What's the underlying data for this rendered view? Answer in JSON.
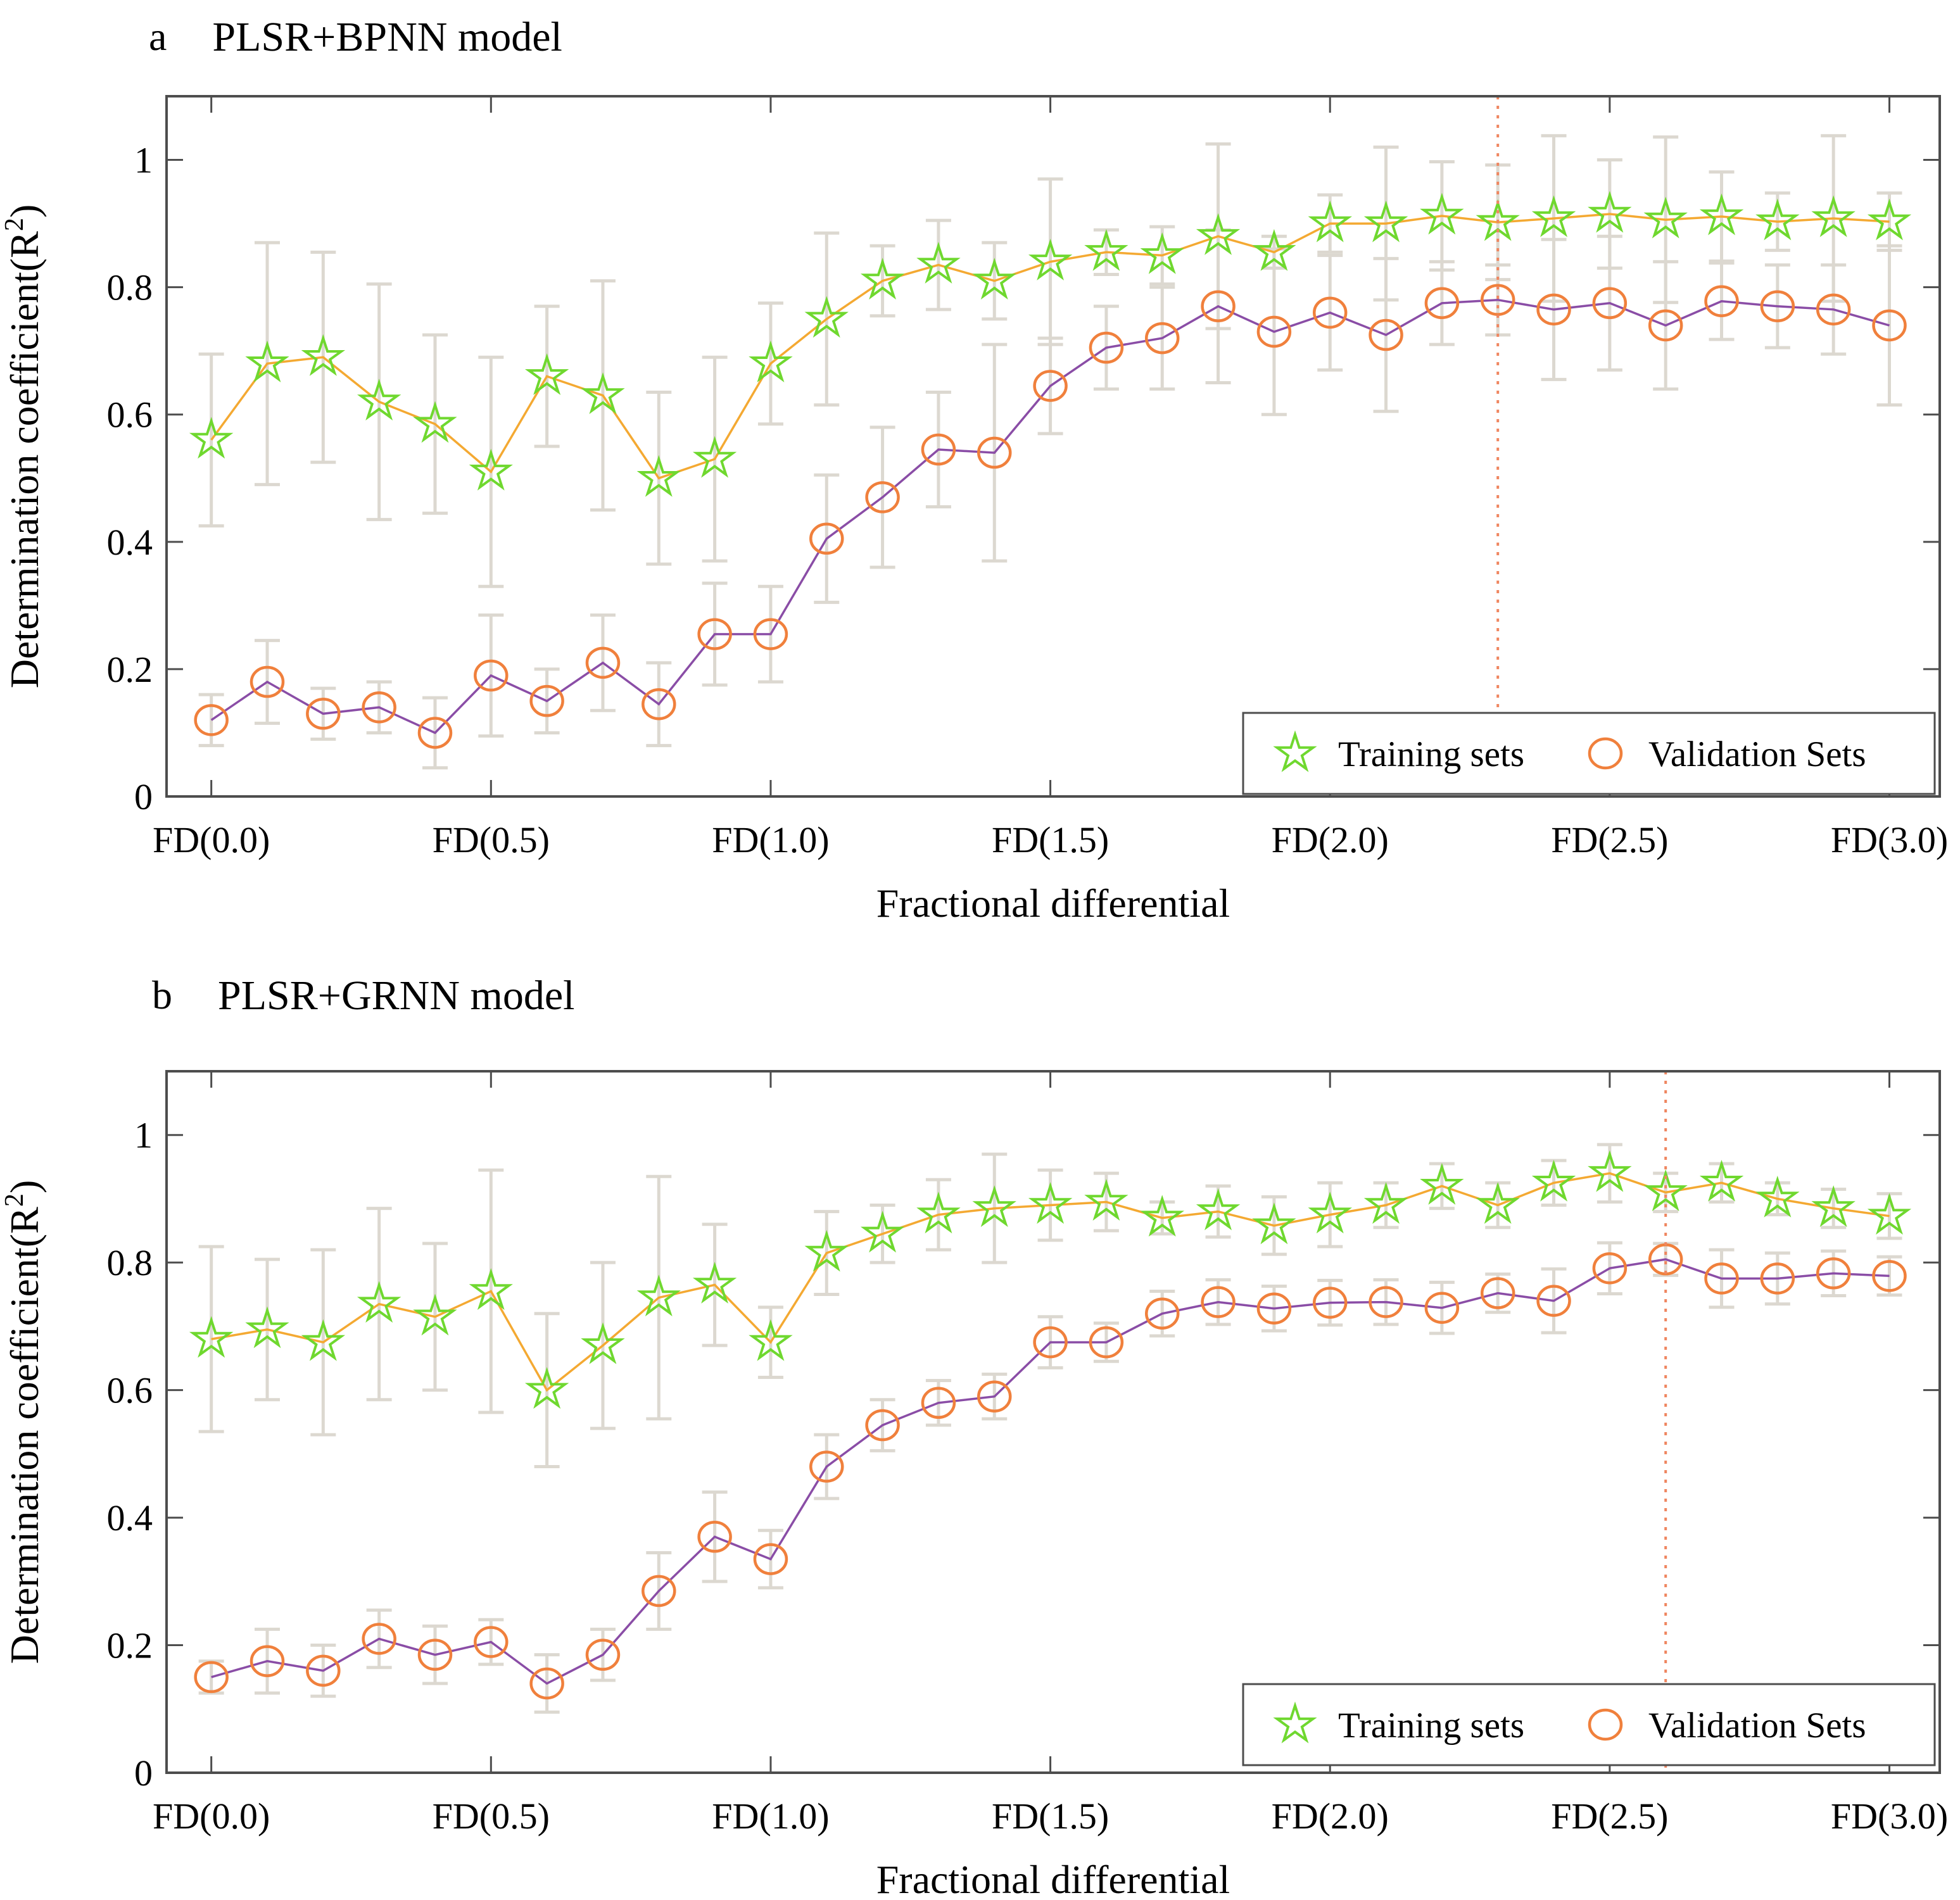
{
  "page": {
    "background": "#ffffff"
  },
  "chart_data": [
    {
      "type": "line",
      "panel_label": "a",
      "title": "PLSR+BPNN model",
      "xlabel": "Fractional differential",
      "ylabel": "Determination coefficient(R²)",
      "x_values": [
        0.0,
        0.1,
        0.2,
        0.3,
        0.4,
        0.5,
        0.6,
        0.7,
        0.8,
        0.9,
        1.0,
        1.1,
        1.2,
        1.3,
        1.4,
        1.5,
        1.6,
        1.7,
        1.8,
        1.9,
        2.0,
        2.1,
        2.2,
        2.3,
        2.4,
        2.5,
        2.6,
        2.7,
        2.8,
        2.9,
        3.0
      ],
      "xtick_values": [
        0,
        0.5,
        1.0,
        1.5,
        2.0,
        2.5,
        3.0
      ],
      "xtick_labels": [
        "FD(0.0)",
        "FD(0.5)",
        "FD(1.0)",
        "FD(1.5)",
        "FD(2.0)",
        "FD(2.5)",
        "FD(3.0)"
      ],
      "ytick_values": [
        0,
        0.2,
        0.4,
        0.6,
        0.8,
        1
      ],
      "ytick_labels": [
        "0",
        "0.2",
        "0.4",
        "0.6",
        "0.8",
        "1"
      ],
      "xlim": [
        -0.08,
        3.09
      ],
      "ylim": [
        0,
        1.1
      ],
      "grid": false,
      "vline_x": 2.3,
      "vline_color": "#ef8660",
      "error_bar_color": "#dcd8d0",
      "axis_color": "#4d4d4d",
      "legend_position": "bottom-right",
      "series": [
        {
          "name": "Training sets",
          "marker": "star",
          "marker_color": "#6fd82f",
          "line_color": "#f4a932",
          "values": [
            0.56,
            0.68,
            0.69,
            0.62,
            0.585,
            0.51,
            0.66,
            0.63,
            0.5,
            0.53,
            0.68,
            0.75,
            0.81,
            0.835,
            0.81,
            0.84,
            0.855,
            0.85,
            0.88,
            0.855,
            0.9,
            0.9,
            0.912,
            0.902,
            0.908,
            0.915,
            0.906,
            0.911,
            0.903,
            0.908,
            0.903
          ],
          "errors": [
            0.135,
            0.19,
            0.165,
            0.185,
            0.14,
            0.18,
            0.11,
            0.18,
            0.135,
            0.16,
            0.095,
            0.135,
            0.055,
            0.07,
            0.06,
            0.13,
            0.035,
            0.045,
            0.145,
            0.025,
            0.045,
            0.12,
            0.085,
            0.09,
            0.13,
            0.085,
            0.13,
            0.07,
            0.045,
            0.13,
            0.045
          ]
        },
        {
          "name": "Validation Sets",
          "marker": "circle",
          "marker_color": "#f0803c",
          "line_color": "#8a4da6",
          "values": [
            0.12,
            0.18,
            0.13,
            0.14,
            0.1,
            0.19,
            0.15,
            0.21,
            0.145,
            0.255,
            0.255,
            0.405,
            0.47,
            0.545,
            0.54,
            0.645,
            0.705,
            0.72,
            0.77,
            0.73,
            0.76,
            0.725,
            0.775,
            0.78,
            0.765,
            0.775,
            0.74,
            0.778,
            0.77,
            0.765,
            0.74
          ],
          "errors": [
            0.04,
            0.065,
            0.04,
            0.04,
            0.055,
            0.095,
            0.05,
            0.075,
            0.065,
            0.08,
            0.075,
            0.1,
            0.11,
            0.09,
            0.17,
            0.075,
            0.065,
            0.08,
            0.12,
            0.13,
            0.09,
            0.12,
            0.065,
            0.055,
            0.11,
            0.105,
            0.1,
            0.06,
            0.065,
            0.07,
            0.125
          ]
        }
      ]
    },
    {
      "type": "line",
      "panel_label": "b",
      "title": "PLSR+GRNN model",
      "xlabel": "Fractional differential",
      "ylabel": "Determination coefficient(R²)",
      "x_values": [
        0.0,
        0.1,
        0.2,
        0.3,
        0.4,
        0.5,
        0.6,
        0.7,
        0.8,
        0.9,
        1.0,
        1.1,
        1.2,
        1.3,
        1.4,
        1.5,
        1.6,
        1.7,
        1.8,
        1.9,
        2.0,
        2.1,
        2.2,
        2.3,
        2.4,
        2.5,
        2.6,
        2.7,
        2.8,
        2.9,
        3.0
      ],
      "xtick_values": [
        0,
        0.5,
        1.0,
        1.5,
        2.0,
        2.5,
        3.0
      ],
      "xtick_labels": [
        "FD(0.0)",
        "FD(0.5)",
        "FD(1.0)",
        "FD(1.5)",
        "FD(2.0)",
        "FD(2.5)",
        "FD(3.0)"
      ],
      "ytick_values": [
        0,
        0.2,
        0.4,
        0.6,
        0.8,
        1
      ],
      "ytick_labels": [
        "0",
        "0.2",
        "0.4",
        "0.6",
        "0.8",
        "1"
      ],
      "xlim": [
        -0.08,
        3.09
      ],
      "ylim": [
        0,
        1.1
      ],
      "grid": false,
      "vline_x": 2.6,
      "vline_color": "#ef8660",
      "error_bar_color": "#dcd8d0",
      "axis_color": "#4d4d4d",
      "legend_position": "bottom-right",
      "series": [
        {
          "name": "Training sets",
          "marker": "star",
          "marker_color": "#6fd82f",
          "line_color": "#f4a932",
          "values": [
            0.68,
            0.695,
            0.675,
            0.735,
            0.715,
            0.755,
            0.6,
            0.67,
            0.745,
            0.765,
            0.675,
            0.815,
            0.845,
            0.875,
            0.885,
            0.89,
            0.895,
            0.87,
            0.88,
            0.858,
            0.875,
            0.89,
            0.92,
            0.89,
            0.925,
            0.94,
            0.91,
            0.925,
            0.9,
            0.885,
            0.873
          ],
          "errors": [
            0.145,
            0.11,
            0.145,
            0.15,
            0.115,
            0.19,
            0.12,
            0.13,
            0.19,
            0.095,
            0.055,
            0.065,
            0.045,
            0.055,
            0.085,
            0.055,
            0.045,
            0.025,
            0.04,
            0.045,
            0.05,
            0.035,
            0.035,
            0.035,
            0.035,
            0.045,
            0.03,
            0.03,
            0.025,
            0.03,
            0.035
          ]
        },
        {
          "name": "Validation Sets",
          "marker": "circle",
          "marker_color": "#f0803c",
          "line_color": "#8a4da6",
          "values": [
            0.15,
            0.175,
            0.16,
            0.21,
            0.185,
            0.205,
            0.14,
            0.185,
            0.285,
            0.37,
            0.335,
            0.48,
            0.545,
            0.58,
            0.59,
            0.675,
            0.675,
            0.72,
            0.738,
            0.728,
            0.737,
            0.738,
            0.729,
            0.752,
            0.74,
            0.791,
            0.805,
            0.775,
            0.775,
            0.783,
            0.779
          ],
          "errors": [
            0.025,
            0.05,
            0.04,
            0.045,
            0.045,
            0.035,
            0.045,
            0.04,
            0.06,
            0.07,
            0.045,
            0.05,
            0.04,
            0.035,
            0.035,
            0.04,
            0.03,
            0.035,
            0.035,
            0.035,
            0.035,
            0.035,
            0.04,
            0.03,
            0.05,
            0.04,
            0.025,
            0.045,
            0.04,
            0.035,
            0.03
          ]
        }
      ]
    }
  ]
}
